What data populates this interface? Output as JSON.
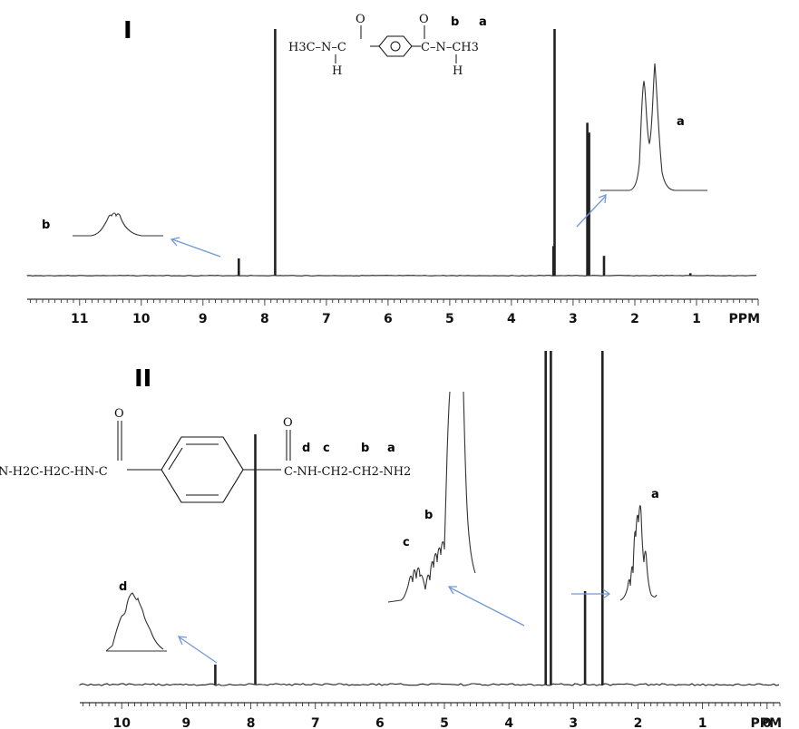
{
  "chart_data": [
    {
      "type": "line",
      "panel_label": "I",
      "x_unit": "PPM",
      "x_ticks": [
        "11",
        "10",
        "9",
        "8",
        "7",
        "6",
        "5",
        "4",
        "3",
        "2",
        "1"
      ],
      "xlim": [
        11.5,
        0.5
      ],
      "structure": {
        "left": "H3C–N–C",
        "left_h": "H",
        "right": "C–N–CH3",
        "right_h": "H",
        "o1": "O",
        "o2": "O",
        "label_b": "b",
        "label_a": "a"
      },
      "peaks": [
        {
          "x": 8.42,
          "y": 0.07
        },
        {
          "x": 7.83,
          "y": 1.0
        },
        {
          "x": 3.32,
          "y": 0.12
        },
        {
          "x": 3.3,
          "y": 1.0
        },
        {
          "x": 2.77,
          "y": 0.62
        },
        {
          "x": 2.74,
          "y": 0.58
        },
        {
          "x": 2.5,
          "y": 0.08
        },
        {
          "x": 1.1,
          "y": 0.01
        }
      ],
      "insets": [
        {
          "label": "b",
          "arrow_to_ppm": 8.42,
          "shape": "broad multiplet"
        },
        {
          "label": "a",
          "arrow_to_ppm": 2.75,
          "shape": "doublet"
        }
      ]
    },
    {
      "type": "line",
      "panel_label": "II",
      "x_unit": "PPM",
      "x_ticks": [
        "10",
        "9",
        "8",
        "7",
        "6",
        "5",
        "4",
        "3",
        "2",
        "1",
        "0"
      ],
      "xlim": [
        10.5,
        -0.5
      ],
      "structure": {
        "left": "N-H2C-H2C-HN-C",
        "right": "C-NH-CH2-CH2-NH2",
        "o1": "O",
        "o2": "O",
        "label_d": "d",
        "label_c": "c",
        "label_b": "b",
        "label_a": "a"
      },
      "peaks": [
        {
          "x": 8.55,
          "y": 0.06
        },
        {
          "x": 7.93,
          "y": 0.75
        },
        {
          "x": 3.43,
          "y": 1.0
        },
        {
          "x": 3.35,
          "y": 1.0
        },
        {
          "x": 2.82,
          "y": 0.28
        },
        {
          "x": 2.55,
          "y": 1.0
        }
      ],
      "insets": [
        {
          "label": "d",
          "arrow_to_ppm": 8.55,
          "shape": "broad multiplet"
        },
        {
          "label": "c",
          "arrow_to_ppm": 3.45,
          "shape": "multiplet"
        },
        {
          "label": "b",
          "arrow_to_ppm": 3.45,
          "shape": "multiplet"
        },
        {
          "label": "a",
          "arrow_to_ppm": 2.82,
          "shape": "multiplet"
        }
      ]
    }
  ],
  "colors": {
    "trace": "#222222",
    "arrow": "#6f99d6"
  }
}
